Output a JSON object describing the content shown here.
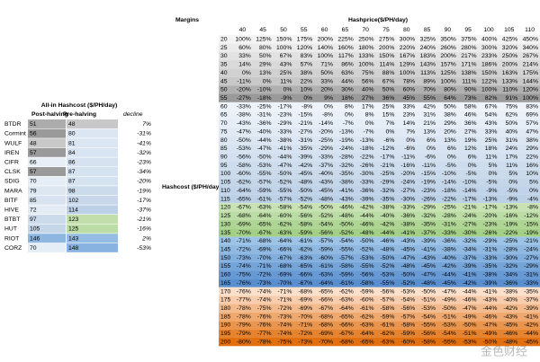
{
  "margins": {
    "title": "Margins",
    "column_header": "Hashprice($/PH/day)",
    "row_header": "Hashcost ($/PH/day)",
    "hashprices": [
      40,
      45,
      50,
      55,
      60,
      65,
      70,
      75,
      80,
      85,
      90,
      95,
      100,
      105,
      110
    ],
    "rows": [
      {
        "hashcost": 20,
        "cells": [
          "100%",
          "125%",
          "150%",
          "175%",
          "200%",
          "225%",
          "250%",
          "275%",
          "300%",
          "325%",
          "350%",
          "375%",
          "400%",
          "425%",
          "450%"
        ]
      },
      {
        "hashcost": 25,
        "cells": [
          "60%",
          "80%",
          "100%",
          "120%",
          "140%",
          "160%",
          "180%",
          "200%",
          "220%",
          "240%",
          "260%",
          "280%",
          "300%",
          "320%",
          "340%"
        ]
      },
      {
        "hashcost": 30,
        "cells": [
          "33%",
          "50%",
          "67%",
          "83%",
          "100%",
          "117%",
          "133%",
          "150%",
          "167%",
          "183%",
          "200%",
          "217%",
          "233%",
          "250%",
          "267%"
        ]
      },
      {
        "hashcost": 35,
        "cells": [
          "14%",
          "29%",
          "43%",
          "57%",
          "71%",
          "86%",
          "100%",
          "114%",
          "129%",
          "143%",
          "157%",
          "171%",
          "186%",
          "200%",
          "214%"
        ]
      },
      {
        "hashcost": 40,
        "cells": [
          "0%",
          "13%",
          "25%",
          "38%",
          "50%",
          "63%",
          "75%",
          "88%",
          "100%",
          "113%",
          "125%",
          "138%",
          "150%",
          "163%",
          "175%"
        ]
      },
      {
        "hashcost": 45,
        "cells": [
          "-11%",
          "0%",
          "11%",
          "22%",
          "33%",
          "44%",
          "56%",
          "67%",
          "78%",
          "89%",
          "100%",
          "111%",
          "122%",
          "133%",
          "144%"
        ]
      },
      {
        "hashcost": 50,
        "cells": [
          "-20%",
          "-10%",
          "0%",
          "10%",
          "20%",
          "30%",
          "40%",
          "50%",
          "60%",
          "70%",
          "80%",
          "90%",
          "100%",
          "110%",
          "120%"
        ]
      },
      {
        "hashcost": 55,
        "cells": [
          "-27%",
          "-18%",
          "-9%",
          "0%",
          "9%",
          "18%",
          "27%",
          "36%",
          "45%",
          "55%",
          "64%",
          "73%",
          "82%",
          "91%",
          "100%"
        ]
      },
      {
        "hashcost": 60,
        "cells": [
          "-33%",
          "-25%",
          "-17%",
          "-8%",
          "0%",
          "8%",
          "17%",
          "25%",
          "33%",
          "42%",
          "50%",
          "58%",
          "67%",
          "75%",
          "83%"
        ]
      },
      {
        "hashcost": 65,
        "cells": [
          "-38%",
          "-31%",
          "-23%",
          "-15%",
          "-8%",
          "0%",
          "8%",
          "15%",
          "23%",
          "31%",
          "38%",
          "46%",
          "54%",
          "62%",
          "69%"
        ]
      },
      {
        "hashcost": 70,
        "cells": [
          "-43%",
          "-36%",
          "-29%",
          "-21%",
          "-14%",
          "-7%",
          "0%",
          "7%",
          "14%",
          "21%",
          "29%",
          "36%",
          "43%",
          "50%",
          "57%"
        ]
      },
      {
        "hashcost": 75,
        "cells": [
          "-47%",
          "-40%",
          "-33%",
          "-27%",
          "-20%",
          "-13%",
          "-7%",
          "0%",
          "7%",
          "13%",
          "20%",
          "27%",
          "33%",
          "40%",
          "47%"
        ]
      },
      {
        "hashcost": 80,
        "cells": [
          "-50%",
          "-44%",
          "-38%",
          "-31%",
          "-25%",
          "-19%",
          "-13%",
          "-6%",
          "0%",
          "6%",
          "13%",
          "19%",
          "25%",
          "31%",
          "38%"
        ]
      },
      {
        "hashcost": 85,
        "cells": [
          "-53%",
          "-47%",
          "-41%",
          "-35%",
          "-29%",
          "-24%",
          "-18%",
          "-12%",
          "-6%",
          "0%",
          "6%",
          "12%",
          "18%",
          "24%",
          "29%"
        ]
      },
      {
        "hashcost": 90,
        "cells": [
          "-56%",
          "-50%",
          "-44%",
          "-39%",
          "-33%",
          "-28%",
          "-22%",
          "-17%",
          "-11%",
          "-6%",
          "0%",
          "6%",
          "11%",
          "17%",
          "22%"
        ]
      },
      {
        "hashcost": 95,
        "cells": [
          "-58%",
          "-53%",
          "-47%",
          "-42%",
          "-37%",
          "-32%",
          "-26%",
          "-21%",
          "-16%",
          "-11%",
          "-5%",
          "0%",
          "5%",
          "11%",
          "16%"
        ]
      },
      {
        "hashcost": 100,
        "cells": [
          "-60%",
          "-55%",
          "-50%",
          "-45%",
          "-40%",
          "-35%",
          "-30%",
          "-25%",
          "-20%",
          "-15%",
          "-10%",
          "-5%",
          "0%",
          "5%",
          "10%"
        ]
      },
      {
        "hashcost": 105,
        "cells": [
          "-62%",
          "-57%",
          "-52%",
          "-48%",
          "-43%",
          "-38%",
          "-33%",
          "-29%",
          "-24%",
          "-19%",
          "-14%",
          "-10%",
          "-5%",
          "0%",
          "5%"
        ]
      },
      {
        "hashcost": 110,
        "cells": [
          "-64%",
          "-59%",
          "-55%",
          "-50%",
          "-45%",
          "-41%",
          "-36%",
          "-32%",
          "-27%",
          "-23%",
          "-18%",
          "-14%",
          "-9%",
          "-5%",
          "0%"
        ]
      },
      {
        "hashcost": 115,
        "cells": [
          "-65%",
          "-61%",
          "-57%",
          "-52%",
          "-48%",
          "-43%",
          "-39%",
          "-35%",
          "-30%",
          "-26%",
          "-22%",
          "-17%",
          "-13%",
          "-9%",
          "-4%"
        ]
      },
      {
        "hashcost": 120,
        "cells": [
          "-67%",
          "-63%",
          "-58%",
          "-54%",
          "-50%",
          "-46%",
          "-42%",
          "-38%",
          "-33%",
          "-29%",
          "-25%",
          "-21%",
          "-17%",
          "-13%",
          "-8%"
        ]
      },
      {
        "hashcost": 125,
        "cells": [
          "-68%",
          "-64%",
          "-60%",
          "-56%",
          "-52%",
          "-48%",
          "-44%",
          "-40%",
          "-36%",
          "-32%",
          "-28%",
          "-24%",
          "-20%",
          "-16%",
          "-12%"
        ]
      },
      {
        "hashcost": 130,
        "cells": [
          "-69%",
          "-65%",
          "-62%",
          "-58%",
          "-54%",
          "-50%",
          "-46%",
          "-42%",
          "-38%",
          "-35%",
          "-31%",
          "-27%",
          "-23%",
          "-19%",
          "-15%"
        ]
      },
      {
        "hashcost": 135,
        "cells": [
          "-70%",
          "-67%",
          "-63%",
          "-59%",
          "-56%",
          "-52%",
          "-48%",
          "-44%",
          "-41%",
          "-37%",
          "-33%",
          "-30%",
          "-26%",
          "-22%",
          "-19%"
        ]
      },
      {
        "hashcost": 140,
        "cells": [
          "-71%",
          "-68%",
          "-64%",
          "-61%",
          "-57%",
          "-54%",
          "-50%",
          "-46%",
          "-43%",
          "-39%",
          "-36%",
          "-32%",
          "-29%",
          "-25%",
          "-21%"
        ]
      },
      {
        "hashcost": 145,
        "cells": [
          "-72%",
          "-69%",
          "-66%",
          "-62%",
          "-59%",
          "-55%",
          "-52%",
          "-48%",
          "-45%",
          "-41%",
          "-38%",
          "-34%",
          "-31%",
          "-28%",
          "-24%"
        ]
      },
      {
        "hashcost": 150,
        "cells": [
          "-73%",
          "-70%",
          "-67%",
          "-63%",
          "-60%",
          "-57%",
          "-53%",
          "-50%",
          "-47%",
          "-43%",
          "-40%",
          "-37%",
          "-33%",
          "-30%",
          "-27%"
        ]
      },
      {
        "hashcost": 155,
        "cells": [
          "-74%",
          "-71%",
          "-68%",
          "-65%",
          "-61%",
          "-58%",
          "-55%",
          "-52%",
          "-48%",
          "-45%",
          "-42%",
          "-39%",
          "-35%",
          "-32%",
          "-29%"
        ]
      },
      {
        "hashcost": 160,
        "cells": [
          "-75%",
          "-72%",
          "-69%",
          "-66%",
          "-63%",
          "-59%",
          "-56%",
          "-53%",
          "-50%",
          "-47%",
          "-44%",
          "-41%",
          "-38%",
          "-34%",
          "-31%"
        ]
      },
      {
        "hashcost": 165,
        "cells": [
          "-76%",
          "-73%",
          "-70%",
          "-67%",
          "-64%",
          "-61%",
          "-58%",
          "-55%",
          "-52%",
          "-48%",
          "-45%",
          "-42%",
          "-39%",
          "-36%",
          "-33%"
        ]
      },
      {
        "hashcost": 170,
        "cells": [
          "-76%",
          "-74%",
          "-71%",
          "-68%",
          "-65%",
          "-62%",
          "-59%",
          "-56%",
          "-53%",
          "-50%",
          "-47%",
          "-44%",
          "-41%",
          "-38%",
          "-35%"
        ]
      },
      {
        "hashcost": 175,
        "cells": [
          "-77%",
          "-74%",
          "-71%",
          "-69%",
          "-66%",
          "-63%",
          "-60%",
          "-57%",
          "-54%",
          "-51%",
          "-49%",
          "-46%",
          "-43%",
          "-40%",
          "-37%"
        ]
      },
      {
        "hashcost": 180,
        "cells": [
          "-78%",
          "-75%",
          "-72%",
          "-69%",
          "-67%",
          "-64%",
          "-61%",
          "-58%",
          "-56%",
          "-53%",
          "-50%",
          "-47%",
          "-44%",
          "-42%",
          "-39%"
        ]
      },
      {
        "hashcost": 185,
        "cells": [
          "-78%",
          "-76%",
          "-73%",
          "-70%",
          "-68%",
          "-65%",
          "-62%",
          "-59%",
          "-57%",
          "-54%",
          "-51%",
          "-49%",
          "-46%",
          "-43%",
          "-41%"
        ]
      },
      {
        "hashcost": 190,
        "cells": [
          "-79%",
          "-76%",
          "-74%",
          "-71%",
          "-68%",
          "-66%",
          "-63%",
          "-61%",
          "-58%",
          "-55%",
          "-53%",
          "-50%",
          "-47%",
          "-45%",
          "-42%"
        ]
      },
      {
        "hashcost": 195,
        "cells": [
          "-79%",
          "-77%",
          "-74%",
          "-72%",
          "-69%",
          "-67%",
          "-64%",
          "-62%",
          "-59%",
          "-56%",
          "-54%",
          "-51%",
          "-49%",
          "-46%",
          "-44%"
        ]
      },
      {
        "hashcost": 200,
        "cells": [
          "-80%",
          "-78%",
          "-75%",
          "-73%",
          "-70%",
          "-68%",
          "-65%",
          "-63%",
          "-60%",
          "-58%",
          "-55%",
          "-53%",
          "-50%",
          "-48%",
          "-45%"
        ]
      }
    ]
  },
  "hashcost_table": {
    "title": "All-in Hashcost ($/PH/day)",
    "columns": [
      "Post-halving",
      "Pre-halving",
      "decline"
    ],
    "rows": [
      [
        "BTDR",
        51,
        48,
        "7%"
      ],
      [
        "Cormint",
        56,
        80,
        "-31%"
      ],
      [
        "WULF",
        48,
        81,
        "-41%"
      ],
      [
        "IREN",
        57,
        84,
        "-32%"
      ],
      [
        "CIFR",
        66,
        86,
        "-23%"
      ],
      [
        "CLSK",
        57,
        87,
        "-34%"
      ],
      [
        "SDIG",
        70,
        87,
        "-20%"
      ],
      [
        "MARA",
        79,
        98,
        "-19%"
      ],
      [
        "BITF",
        85,
        102,
        "-17%"
      ],
      [
        "HIVE",
        72,
        114,
        "-37%"
      ],
      [
        "BTBT",
        97,
        123,
        "-21%"
      ],
      [
        "HUT",
        105,
        125,
        "-16%"
      ],
      [
        "RIOT",
        146,
        143,
        "2%"
      ],
      [
        "CORZ",
        70,
        148,
        "-53%"
      ]
    ]
  },
  "watermark": "金色财经"
}
